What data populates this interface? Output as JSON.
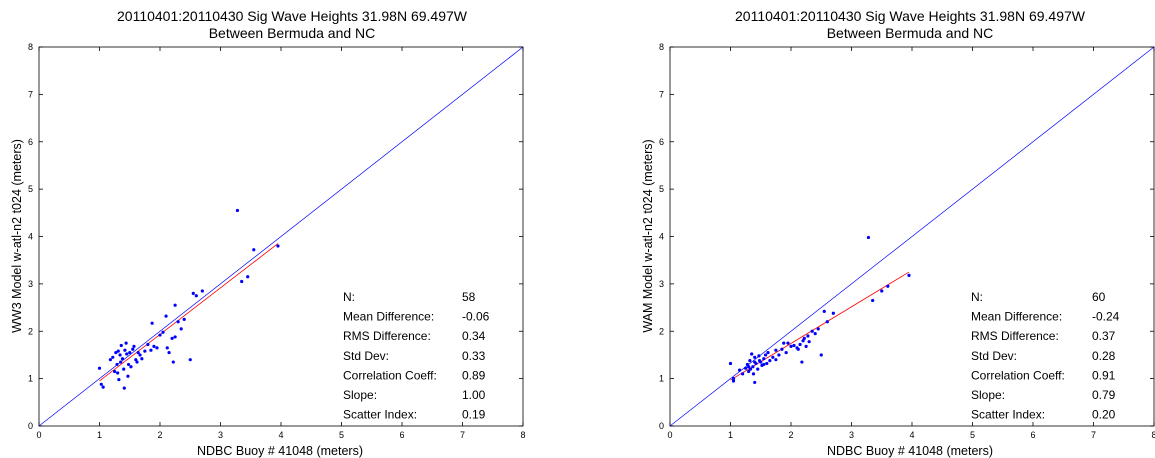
{
  "colors": {
    "points": "#0000ff",
    "one_to_one": "#0000ff",
    "fit": "#ff0000",
    "axes": "#000000"
  },
  "chart_data": [
    {
      "type": "scatter",
      "title_line1": "20110401:20110430 Sig Wave Heights 31.98N  69.497W",
      "title_line2": "Between Bermuda and NC",
      "xlabel": "NDBC Buoy # 41048 (meters)",
      "ylabel": "WW3 Model w-atl-n2  t024 (meters)",
      "xlim": [
        0,
        8
      ],
      "ylim": [
        0,
        8
      ],
      "xticks": [
        "0",
        "1",
        "2",
        "3",
        "4",
        "5",
        "6",
        "7",
        "8"
      ],
      "yticks": [
        "0",
        "1",
        "2",
        "3",
        "4",
        "5",
        "6",
        "7",
        "8"
      ],
      "one_to_one_line": [
        [
          0,
          0
        ],
        [
          8,
          8
        ]
      ],
      "fit_line": [
        [
          1.0,
          0.95
        ],
        [
          3.95,
          3.85
        ]
      ],
      "points": [
        [
          1.0,
          1.22
        ],
        [
          1.03,
          0.88
        ],
        [
          1.06,
          0.82
        ],
        [
          1.18,
          1.4
        ],
        [
          1.22,
          1.45
        ],
        [
          1.25,
          1.15
        ],
        [
          1.27,
          1.55
        ],
        [
          1.29,
          1.3
        ],
        [
          1.3,
          1.12
        ],
        [
          1.31,
          1.58
        ],
        [
          1.32,
          0.98
        ],
        [
          1.34,
          1.5
        ],
        [
          1.35,
          1.35
        ],
        [
          1.36,
          1.7
        ],
        [
          1.38,
          1.42
        ],
        [
          1.4,
          1.2
        ],
        [
          1.41,
          0.8
        ],
        [
          1.42,
          1.6
        ],
        [
          1.44,
          1.75
        ],
        [
          1.45,
          1.52
        ],
        [
          1.47,
          1.05
        ],
        [
          1.48,
          1.3
        ],
        [
          1.5,
          1.55
        ],
        [
          1.52,
          1.25
        ],
        [
          1.55,
          1.62
        ],
        [
          1.57,
          1.68
        ],
        [
          1.6,
          1.4
        ],
        [
          1.62,
          1.35
        ],
        [
          1.64,
          1.55
        ],
        [
          1.67,
          1.5
        ],
        [
          1.7,
          1.42
        ],
        [
          1.75,
          1.58
        ],
        [
          1.8,
          1.72
        ],
        [
          1.85,
          1.6
        ],
        [
          1.87,
          2.17
        ],
        [
          1.9,
          1.68
        ],
        [
          1.95,
          1.65
        ],
        [
          2.05,
          1.98
        ],
        [
          2.1,
          2.32
        ],
        [
          2.12,
          1.65
        ],
        [
          2.15,
          1.55
        ],
        [
          2.2,
          1.85
        ],
        [
          2.22,
          1.35
        ],
        [
          2.25,
          1.88
        ],
        [
          2.25,
          2.55
        ],
        [
          2.3,
          2.2
        ],
        [
          2.35,
          2.05
        ],
        [
          2.4,
          2.25
        ],
        [
          2.5,
          1.4
        ],
        [
          2.55,
          2.8
        ],
        [
          2.6,
          2.75
        ],
        [
          2.7,
          2.85
        ],
        [
          3.28,
          4.55
        ],
        [
          3.35,
          3.05
        ],
        [
          3.45,
          3.15
        ],
        [
          3.55,
          3.72
        ],
        [
          3.95,
          3.8
        ],
        [
          2.0,
          1.92
        ]
      ],
      "stats": {
        "labels": [
          "N:",
          "Mean Difference:",
          "RMS Difference:",
          "Std Dev:",
          "Correlation Coeff:",
          "Slope:",
          "Scatter Index:"
        ],
        "values": [
          "58",
          "-0.06",
          "0.34",
          "0.33",
          "0.89",
          "1.00",
          "0.19"
        ]
      }
    },
    {
      "type": "scatter",
      "title_line1": "20110401:20110430 Sig Wave Heights 31.98N  69.497W",
      "title_line2": "Between Bermuda and NC",
      "xlabel": "NDBC Buoy # 41048 (meters)",
      "ylabel": "WAM Model w-atl-n2  t024 (meters)",
      "xlim": [
        0,
        8
      ],
      "ylim": [
        0,
        8
      ],
      "xticks": [
        "0",
        "1",
        "2",
        "3",
        "4",
        "5",
        "6",
        "7",
        "8"
      ],
      "yticks": [
        "0",
        "1",
        "2",
        "3",
        "4",
        "5",
        "6",
        "7",
        "8"
      ],
      "one_to_one_line": [
        [
          0,
          0
        ],
        [
          8,
          8
        ]
      ],
      "fit_line": [
        [
          1.0,
          0.97
        ],
        [
          3.95,
          3.25
        ]
      ],
      "points": [
        [
          1.0,
          1.32
        ],
        [
          1.05,
          1.0
        ],
        [
          1.05,
          0.95
        ],
        [
          1.15,
          1.18
        ],
        [
          1.2,
          1.1
        ],
        [
          1.25,
          1.22
        ],
        [
          1.28,
          1.3
        ],
        [
          1.3,
          1.15
        ],
        [
          1.32,
          1.38
        ],
        [
          1.33,
          1.2
        ],
        [
          1.35,
          1.52
        ],
        [
          1.37,
          1.25
        ],
        [
          1.38,
          1.1
        ],
        [
          1.4,
          1.45
        ],
        [
          1.4,
          0.92
        ],
        [
          1.42,
          1.32
        ],
        [
          1.45,
          1.2
        ],
        [
          1.47,
          1.48
        ],
        [
          1.5,
          1.35
        ],
        [
          1.52,
          1.28
        ],
        [
          1.55,
          1.42
        ],
        [
          1.58,
          1.5
        ],
        [
          1.6,
          1.32
        ],
        [
          1.65,
          1.38
        ],
        [
          1.7,
          1.45
        ],
        [
          1.75,
          1.4
        ],
        [
          1.8,
          1.5
        ],
        [
          1.85,
          1.62
        ],
        [
          1.88,
          1.75
        ],
        [
          1.92,
          1.55
        ],
        [
          2.0,
          1.68
        ],
        [
          2.05,
          1.7
        ],
        [
          2.1,
          1.65
        ],
        [
          2.15,
          1.72
        ],
        [
          2.18,
          1.35
        ],
        [
          2.2,
          1.8
        ],
        [
          2.22,
          1.85
        ],
        [
          2.25,
          1.68
        ],
        [
          2.28,
          1.9
        ],
        [
          2.3,
          1.78
        ],
        [
          2.4,
          1.95
        ],
        [
          2.45,
          2.05
        ],
        [
          2.5,
          1.5
        ],
        [
          2.55,
          2.42
        ],
        [
          2.6,
          2.2
        ],
        [
          2.7,
          2.38
        ],
        [
          3.28,
          3.98
        ],
        [
          3.35,
          2.65
        ],
        [
          3.5,
          2.85
        ],
        [
          3.6,
          2.95
        ],
        [
          3.95,
          3.18
        ],
        [
          1.62,
          1.55
        ],
        [
          1.75,
          1.6
        ],
        [
          1.95,
          1.75
        ],
        [
          2.35,
          2.0
        ],
        [
          1.48,
          1.38
        ],
        [
          1.3,
          1.25
        ],
        [
          1.4,
          1.35
        ],
        [
          1.55,
          1.3
        ],
        [
          2.12,
          1.62
        ]
      ],
      "stats": {
        "labels": [
          "N:",
          "Mean Difference:",
          "RMS Difference:",
          "Std Dev:",
          "Correlation Coeff:",
          "Slope:",
          "Scatter Index:"
        ],
        "values": [
          "60",
          "-0.24",
          "0.37",
          "0.28",
          "0.91",
          "0.79",
          "0.20"
        ]
      }
    }
  ]
}
